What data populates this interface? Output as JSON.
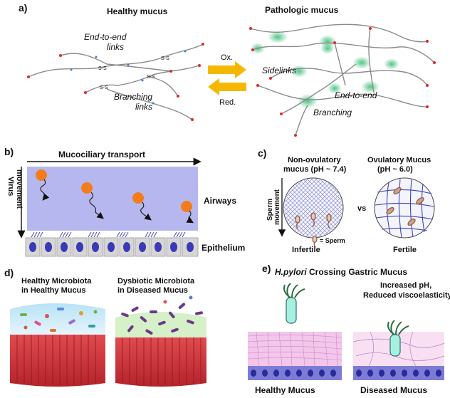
{
  "panel_a": {
    "label": "a)",
    "healthy_title": "Healthy mucus",
    "pathologic_title": "Pathologic mucus",
    "end_to_end_1": "End-to-end",
    "end_to_end_2": "links",
    "branching_1": "Branching",
    "branching_2": "links",
    "ox": "Ox.",
    "red": "Red.",
    "sidelinks": "Sidelinks",
    "end_to_end_path": "End-to-end",
    "branching_path": "Branching",
    "bond": "S-S"
  },
  "panel_b": {
    "label": "b)",
    "transport": "Mucociliary transport",
    "virus_1": "Virus",
    "virus_2": "movement",
    "airways": "Airways",
    "epithelium": "Epithelium"
  },
  "panel_c": {
    "label": "c)",
    "nonov_1": "Non-ovulatory",
    "nonov_2": "mucus (pH ~ 7.4)",
    "ov_1": "Ovulatory Mucus",
    "ov_2": "(pH ~ 6.0)",
    "sperm_1": "Sperm",
    "sperm_2": "movement",
    "vs": "vs",
    "sperm_legend": "= Sperm",
    "infertile": "Infertile",
    "fertile": "Fertile"
  },
  "panel_d": {
    "label": "d)",
    "healthy_1": "Healthy Microbiota",
    "healthy_2": "in Healthy Mucus",
    "dysbiotic_1": "Dysbiotic Microbiota",
    "dysbiotic_2": "in Diseased Mucus"
  },
  "panel_e": {
    "label": "e)",
    "title_italic": "H.pylori",
    "title_rest": " Crossing Gastric Mucus",
    "increased": "Increased pH,",
    "reduced": "Reduced  viscoelasticity",
    "healthy": "Healthy Mucus",
    "diseased": "Diseased Mucus"
  },
  "colors": {
    "airway_bg": "#b7b7f0",
    "cell_gray": "#d6d6d6",
    "nucleus": "#3a3ab8",
    "virus": "#f47c1c",
    "arrow_yellow": "#f5b800",
    "crosslink_green": "#58c08a",
    "tissue_red": "#c8343a",
    "pink_mucus": "#f3c6ea",
    "bacterium_teal": "#a7f0e0"
  }
}
